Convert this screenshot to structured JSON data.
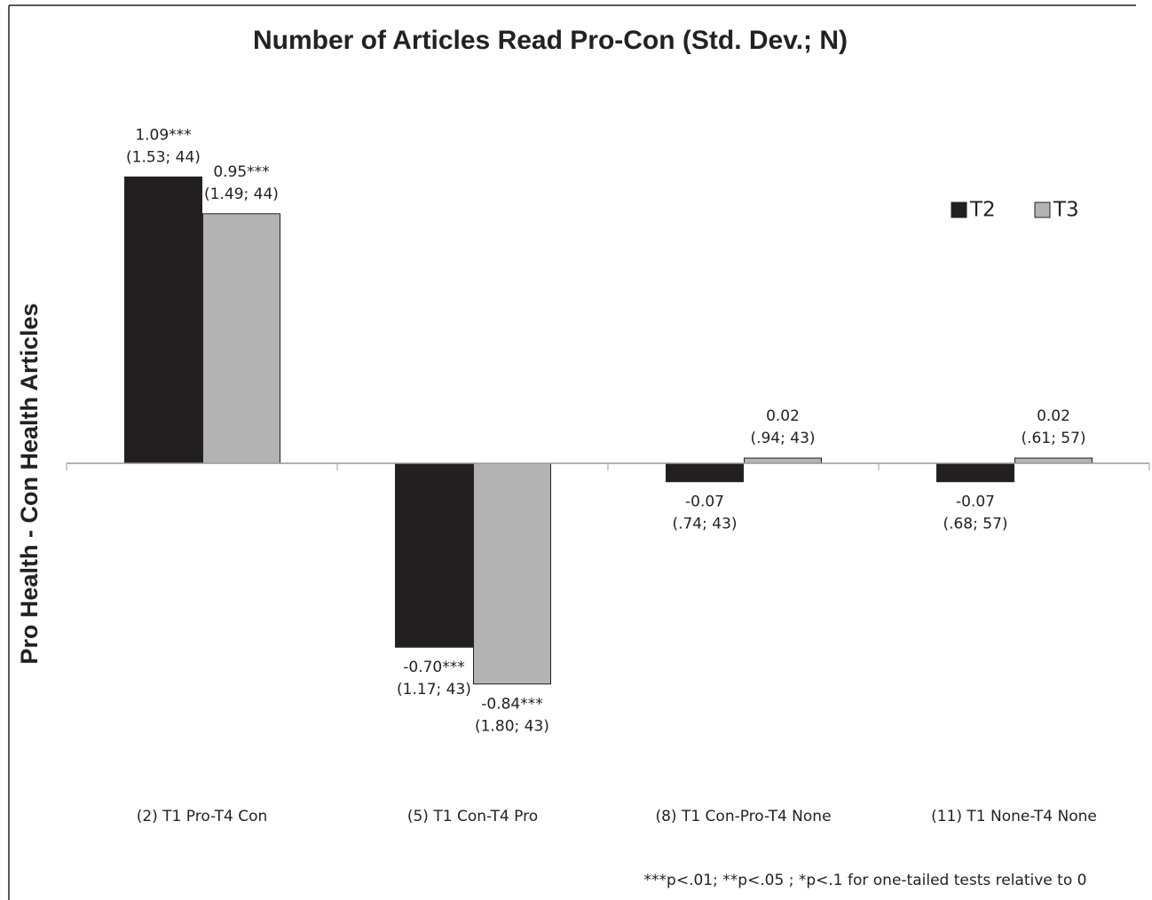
{
  "chart_data": {
    "type": "bar",
    "title": "Number of Articles Read Pro-Con (Std. Dev.; N)",
    "y_label": "Pro Health - Con Health Articles",
    "categories": [
      "(2) T1 Pro-T4 Con",
      "(5) T1 Con-T4 Pro",
      "(8) T1 Con-Pro-T4 None",
      "(11) T1 None-T4 None"
    ],
    "series": [
      {
        "name": "T2",
        "color": "#231f20",
        "values": [
          1.09,
          -0.7,
          -0.07,
          -0.07
        ],
        "value_labels": [
          "1.09***",
          "-0.70***",
          "-0.07",
          "-0.07"
        ],
        "value_notes": [
          "(1.53; 44)",
          "(1.17; 43)",
          "(.74; 43)",
          "(.68; 57)"
        ]
      },
      {
        "name": "T3",
        "color": "#b3b3b3",
        "values": [
          0.95,
          -0.84,
          0.02,
          0.02
        ],
        "value_labels": [
          "0.95***",
          "-0.84***",
          "0.02",
          "0.02"
        ],
        "value_notes": [
          "(1.49; 44)",
          "(1.80; 43)",
          "(.94; 43)",
          "(.61; 57)"
        ]
      }
    ],
    "ylim": [
      -1.2,
      1.4
    ],
    "legend": "upper right",
    "footnote": "***p<.01; **p<.05 ; *p<.1 for one-tailed tests relative to 0"
  }
}
